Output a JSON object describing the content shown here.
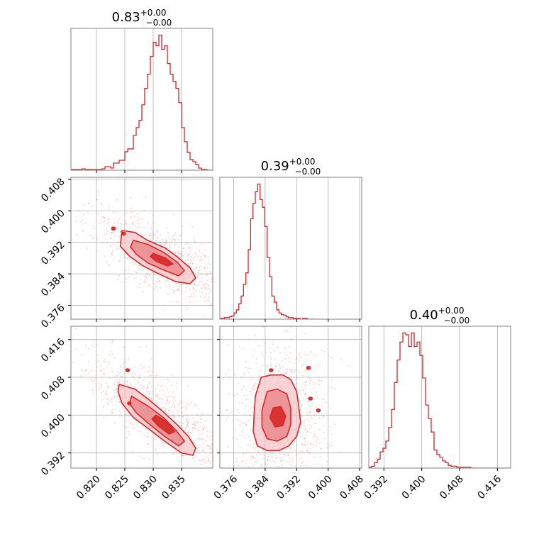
{
  "chart_data": {
    "type": "corner",
    "color": "#d62728",
    "parameters": [
      {
        "title_value": "0.83",
        "err_plus": "+0.00",
        "err_minus": "−0.00",
        "range": [
          0.8155,
          0.8405
        ],
        "ticks": [
          "0.820",
          "0.825",
          "0.830",
          "0.835"
        ]
      },
      {
        "title_value": "0.39",
        "err_plus": "+0.00",
        "err_minus": "−0.00",
        "range": [
          0.3725,
          0.4085
        ],
        "ticks": [
          "0.376",
          "0.384",
          "0.392",
          "0.400",
          "0.408"
        ]
      },
      {
        "title_value": "0.40",
        "err_plus": "+0.00",
        "err_minus": "−0.00",
        "range": [
          0.3888,
          0.4188
        ],
        "ticks": [
          "0.392",
          "0.400",
          "0.408",
          "0.416"
        ]
      }
    ],
    "histograms": [
      {
        "param": 0,
        "bin_start": 0.8155,
        "bin_width": 0.0005,
        "counts": [
          1,
          1,
          1,
          1,
          2,
          1,
          1,
          1,
          1,
          1,
          1,
          2,
          5,
          5,
          3,
          10,
          10,
          14,
          14,
          26,
          30,
          30,
          49,
          60,
          70,
          92,
          115,
          135,
          160,
          180,
          175,
          190,
          170,
          175,
          150,
          135,
          125,
          115,
          95,
          60,
          40,
          25,
          15,
          12,
          8,
          3,
          1,
          1,
          0,
          0
        ]
      },
      {
        "param": 1,
        "bin_start": 0.3725,
        "bin_width": 0.0006,
        "counts": [
          1,
          1,
          2,
          2,
          3,
          4,
          8,
          12,
          20,
          30,
          45,
          60,
          90,
          130,
          150,
          165,
          175,
          155,
          145,
          120,
          80,
          55,
          30,
          22,
          12,
          8,
          6,
          5,
          3,
          2,
          2,
          1,
          1,
          1,
          0,
          1,
          1,
          0,
          0,
          0
        ]
      },
      {
        "param": 2,
        "bin_start": 0.3888,
        "bin_width": 0.0006,
        "counts": [
          1,
          2,
          6,
          10,
          18,
          22,
          30,
          45,
          65,
          95,
          120,
          140,
          150,
          148,
          135,
          150,
          135,
          140,
          125,
          100,
          70,
          55,
          40,
          20,
          15,
          12,
          8,
          6,
          3,
          2,
          2,
          1,
          1,
          1,
          1,
          1,
          0,
          0,
          0,
          0,
          0,
          0,
          0,
          0,
          0,
          0,
          0,
          0,
          0,
          0
        ]
      }
    ],
    "pairs": [
      {
        "x_param": 0,
        "y_param": 1,
        "center": [
          0.8318,
          0.3878
        ],
        "contours": [
          [
            [
              0.8245,
              0.395
            ],
            [
              0.8268,
              0.3945
            ],
            [
              0.829,
              0.3925
            ],
            [
              0.8322,
              0.3905
            ],
            [
              0.8345,
              0.388
            ],
            [
              0.8365,
              0.3855
            ],
            [
              0.8375,
              0.383
            ],
            [
              0.8365,
              0.3815
            ],
            [
              0.834,
              0.382
            ],
            [
              0.831,
              0.384
            ],
            [
              0.8282,
              0.386
            ],
            [
              0.8258,
              0.3885
            ],
            [
              0.8242,
              0.391
            ]
          ],
          [
            [
              0.8265,
              0.3925
            ],
            [
              0.829,
              0.3915
            ],
            [
              0.8318,
              0.3895
            ],
            [
              0.8342,
              0.387
            ],
            [
              0.8355,
              0.3848
            ],
            [
              0.8345,
              0.3835
            ],
            [
              0.8318,
              0.385
            ],
            [
              0.829,
              0.3868
            ],
            [
              0.827,
              0.389
            ],
            [
              0.826,
              0.3908
            ]
          ],
          [
            [
              0.83,
              0.3892
            ],
            [
              0.8322,
              0.388
            ],
            [
              0.8335,
              0.3865
            ],
            [
              0.8325,
              0.386
            ],
            [
              0.8305,
              0.3872
            ],
            [
              0.8295,
              0.3884
            ]
          ]
        ],
        "islands": [
          [
            0.823,
            0.3955
          ],
          [
            0.8248,
            0.3942
          ]
        ]
      },
      {
        "x_param": 0,
        "y_param": 2,
        "center": [
          0.8318,
          0.3993
        ],
        "contours": [
          [
            [
              0.824,
              0.4065
            ],
            [
              0.8268,
              0.4055
            ],
            [
              0.829,
              0.4035
            ],
            [
              0.8315,
              0.401
            ],
            [
              0.8342,
              0.398
            ],
            [
              0.8362,
              0.3955
            ],
            [
              0.8375,
              0.393
            ],
            [
              0.837,
              0.3915
            ],
            [
              0.835,
              0.392
            ],
            [
              0.832,
              0.3945
            ],
            [
              0.8293,
              0.397
            ],
            [
              0.8265,
              0.3995
            ],
            [
              0.8245,
              0.4025
            ],
            [
              0.8238,
              0.405
            ]
          ],
          [
            [
              0.8262,
              0.404
            ],
            [
              0.829,
              0.402
            ],
            [
              0.8318,
              0.3995
            ],
            [
              0.834,
              0.3968
            ],
            [
              0.8355,
              0.3945
            ],
            [
              0.8345,
              0.3935
            ],
            [
              0.832,
              0.3955
            ],
            [
              0.8292,
              0.3982
            ],
            [
              0.827,
              0.4005
            ],
            [
              0.8258,
              0.4025
            ]
          ],
          [
            [
              0.8305,
              0.4
            ],
            [
              0.8325,
              0.3985
            ],
            [
              0.8338,
              0.3965
            ],
            [
              0.8328,
              0.396
            ],
            [
              0.8308,
              0.3978
            ],
            [
              0.8298,
              0.3992
            ]
          ]
        ],
        "islands": [
          [
            0.8255,
            0.4095
          ],
          [
            0.8258,
            0.4025
          ]
        ]
      },
      {
        "x_param": 1,
        "y_param": 2,
        "center": [
          0.387,
          0.3988
        ],
        "contours": [
          [
            [
              0.383,
              0.408
            ],
            [
              0.3855,
              0.4085
            ],
            [
              0.3885,
              0.4085
            ],
            [
              0.3905,
              0.4075
            ],
            [
              0.392,
              0.405
            ],
            [
              0.3925,
              0.402
            ],
            [
              0.393,
              0.3985
            ],
            [
              0.392,
              0.3955
            ],
            [
              0.39,
              0.3935
            ],
            [
              0.3875,
              0.3925
            ],
            [
              0.3845,
              0.3925
            ],
            [
              0.382,
              0.3935
            ],
            [
              0.381,
              0.3965
            ],
            [
              0.3812,
              0.4
            ],
            [
              0.3815,
              0.404
            ]
          ],
          [
            [
              0.3845,
              0.405
            ],
            [
              0.387,
              0.4055
            ],
            [
              0.3895,
              0.4045
            ],
            [
              0.3905,
              0.4015
            ],
            [
              0.3905,
              0.398
            ],
            [
              0.3895,
              0.3955
            ],
            [
              0.387,
              0.3945
            ],
            [
              0.3845,
              0.395
            ],
            [
              0.3832,
              0.3975
            ],
            [
              0.3832,
              0.401
            ]
          ],
          [
            [
              0.386,
              0.4015
            ],
            [
              0.388,
              0.4018
            ],
            [
              0.3892,
              0.3998
            ],
            [
              0.3885,
              0.3978
            ],
            [
              0.3865,
              0.3975
            ],
            [
              0.3852,
              0.3995
            ]
          ]
        ],
        "islands": [
          [
            0.395,
            0.41
          ],
          [
            0.3955,
            0.4035
          ],
          [
            0.3975,
            0.401
          ],
          [
            0.3855,
            0.4095
          ]
        ]
      }
    ]
  }
}
